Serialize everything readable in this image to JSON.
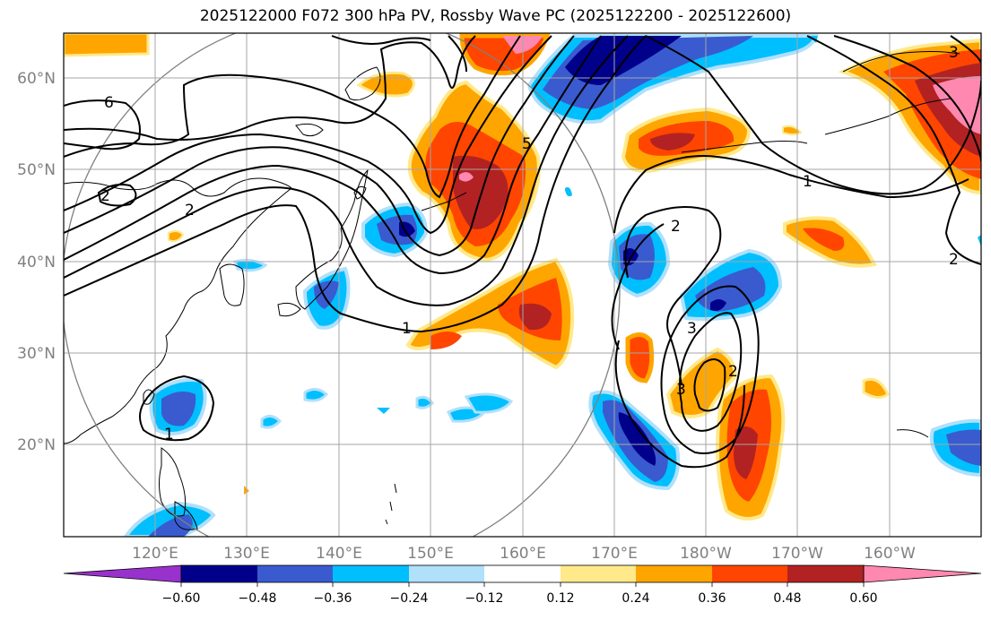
{
  "title": "2025122000 F072 300 hPa PV, Rossby Wave PC (2025122200 - 2025122600)",
  "map": {
    "lon_range": [
      110,
      210
    ],
    "lat_range": [
      10,
      65
    ],
    "lat_labels": [
      "20°N",
      "30°N",
      "40°N",
      "50°N",
      "60°N"
    ],
    "lon_labels": [
      "120°E",
      "130°E",
      "140°E",
      "150°E",
      "160°E",
      "170°E",
      "180°W",
      "170°W",
      "160°W"
    ],
    "grid": true
  },
  "contour_labels": [
    "6",
    "2",
    "1",
    "5",
    "2",
    "1",
    "2",
    "3",
    "2",
    "3",
    "1",
    "2",
    "3"
  ],
  "colorbar": {
    "ticks": [
      "−0.60",
      "−0.48",
      "−0.36",
      "−0.24",
      "−0.12",
      "0.12",
      "0.24",
      "0.36",
      "0.48",
      "0.60"
    ],
    "colors": [
      "#9932cc",
      "#00008b",
      "#3a5bcf",
      "#00bfff",
      "#b0e0fa",
      "#ffffff",
      "#ffe98a",
      "#ffa500",
      "#ff4500",
      "#b22222",
      "#ff88b0"
    ]
  }
}
